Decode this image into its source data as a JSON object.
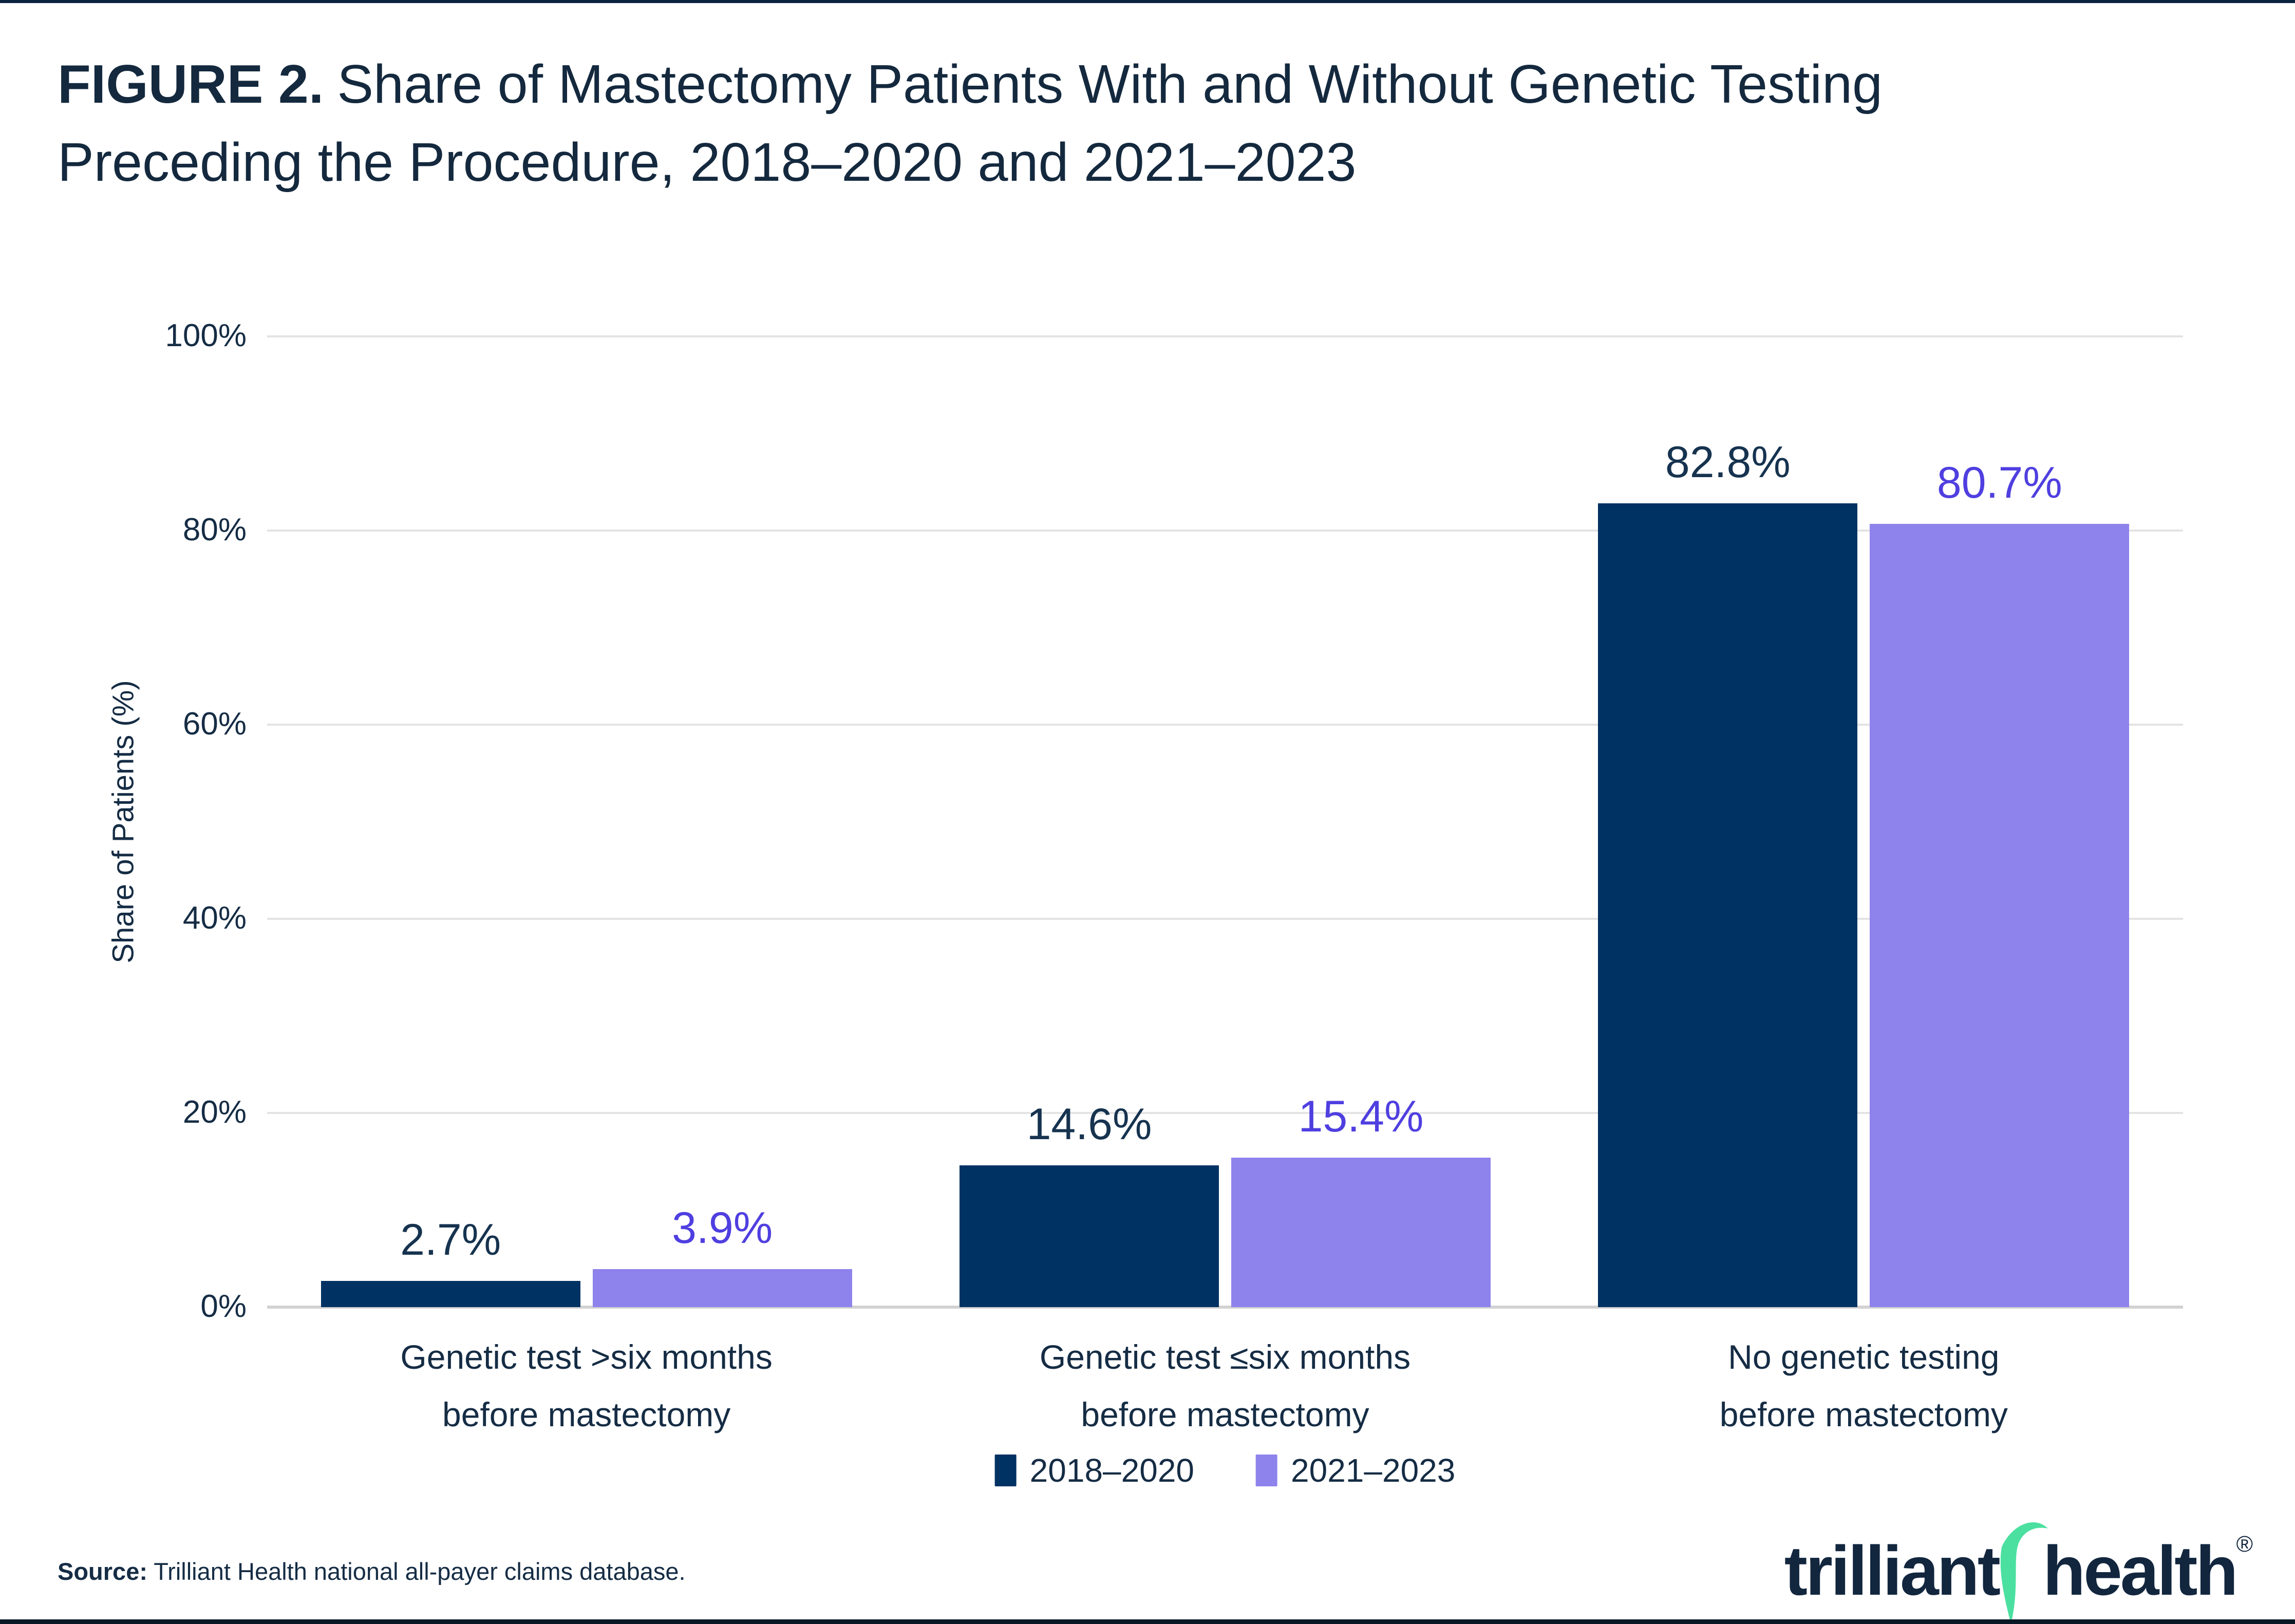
{
  "page": {
    "background": "#FFFFFF",
    "top_bar_color": "#0C2340",
    "bottom_bar_color": "#0A1725"
  },
  "title": {
    "prefix": "FIGURE 2.",
    "line1_rest": "Share of Mastectomy Patients With and Without Genetic Testing",
    "line2": "Preceding the Procedure, 2018–2020 and 2021–2023",
    "color": "#14293E"
  },
  "chart_data": {
    "type": "bar",
    "title": "FIGURE 2. Share of Mastectomy Patients With and Without Genetic Testing Preceding the Procedure, 2018–2020 and 2021–2023",
    "ylabel": "Share of Patients (%)",
    "ylim": [
      0,
      100
    ],
    "yticks": [
      "0%",
      "20%",
      "40%",
      "60%",
      "80%",
      "100%"
    ],
    "grid": true,
    "legend_position": "bottom-center",
    "categories": [
      "Genetic test >six months\nbefore mastectomy",
      "Genetic test ≤six months\nbefore mastectomy",
      "No genetic testing\nbefore mastectomy"
    ],
    "series": [
      {
        "name": "2018–2020",
        "color": "#003263",
        "label_color": "#16334F",
        "values": [
          2.7,
          14.6,
          82.8
        ],
        "value_labels": [
          "2.7%",
          "14.6%",
          "82.8%"
        ]
      },
      {
        "name": "2021–2023",
        "color": "#8E82EC",
        "label_color": "#4F3FE0",
        "values": [
          3.9,
          15.4,
          80.7
        ],
        "value_labels": [
          "3.9%",
          "15.4%",
          "80.7%"
        ]
      }
    ]
  },
  "legend": {
    "items": [
      {
        "label": "2018–2020",
        "color": "#003263"
      },
      {
        "label": "2021–2023",
        "color": "#8E82EC"
      }
    ]
  },
  "source": {
    "label": "Source:",
    "text": "Trilliant Health national all-payer claims database."
  },
  "logo": {
    "word1": "trilliant",
    "word2": "health",
    "registered": "®",
    "text_color": "#12263E",
    "swoosh_color": "#4BE0A0"
  }
}
